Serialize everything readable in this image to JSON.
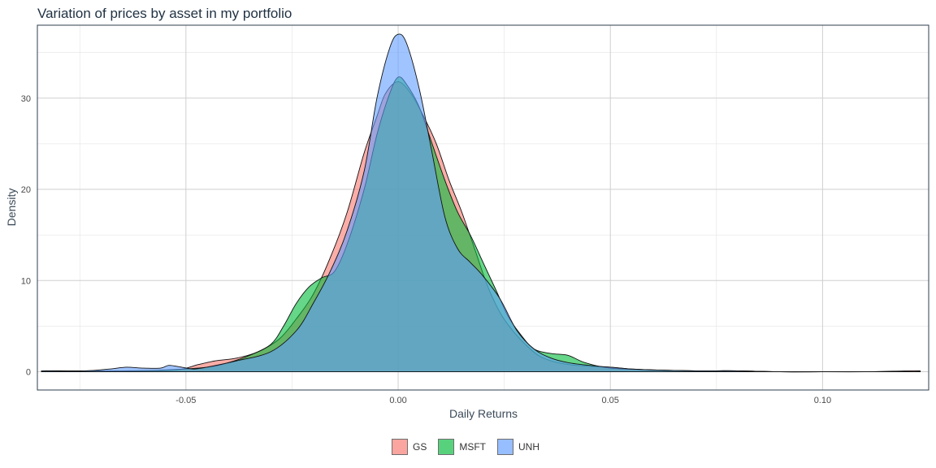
{
  "title": "Variation of prices by asset in my portfolio",
  "legend": [
    {
      "label": "GS",
      "color": "#f8766d"
    },
    {
      "label": "MSFT",
      "color": "#00ba38"
    },
    {
      "label": "UNH",
      "color": "#619cff"
    }
  ],
  "chart_data": {
    "type": "area",
    "title": "Variation of prices by asset in my portfolio",
    "xlabel": "Daily Returns",
    "ylabel": "Density",
    "xlim": [
      -0.085,
      0.125
    ],
    "ylim": [
      -2,
      38
    ],
    "xticks": [
      -0.05,
      0.0,
      0.05,
      0.1
    ],
    "xtick_labels": [
      "-0.05",
      "0.00",
      "0.05",
      "0.10"
    ],
    "yticks": [
      0,
      10,
      20,
      30
    ],
    "ytick_labels": [
      "0",
      "10",
      "20",
      "30"
    ],
    "grid": true,
    "legend_position": "bottom",
    "series": [
      {
        "name": "GS",
        "color": "#f8766d",
        "x": [
          -0.084,
          -0.078,
          -0.07,
          -0.06,
          -0.052,
          -0.047,
          -0.043,
          -0.038,
          -0.033,
          -0.028,
          -0.024,
          -0.02,
          -0.016,
          -0.012,
          -0.008,
          -0.005,
          -0.003,
          0,
          0.003,
          0.006,
          0.009,
          0.012,
          0.015,
          0.018,
          0.021,
          0.024,
          0.027,
          0.03,
          0.033,
          0.036,
          0.04,
          0.045,
          0.05,
          0.055,
          0.06,
          0.07,
          0.08,
          0.09,
          0.1,
          0.11,
          0.12,
          0.123
        ],
        "y": [
          0.1,
          0.1,
          0,
          0.1,
          0.2,
          0.8,
          1.2,
          1.5,
          2.2,
          3.6,
          5.8,
          8.5,
          12.5,
          17.5,
          24,
          28,
          30.5,
          31.8,
          30.5,
          28,
          25,
          21,
          17.5,
          13.5,
          9.5,
          6.5,
          4.5,
          3,
          1.8,
          1.2,
          0.8,
          0.6,
          0.5,
          0.3,
          0.2,
          0.1,
          0.1,
          0,
          0,
          0,
          0.1,
          0.1
        ]
      },
      {
        "name": "MSFT",
        "color": "#00ba38",
        "x": [
          -0.084,
          -0.075,
          -0.065,
          -0.055,
          -0.045,
          -0.04,
          -0.035,
          -0.03,
          -0.027,
          -0.024,
          -0.021,
          -0.018,
          -0.015,
          -0.012,
          -0.008,
          -0.005,
          -0.002,
          0,
          0.002,
          0.005,
          0.008,
          0.011,
          0.014,
          0.017,
          0.02,
          0.023,
          0.026,
          0.029,
          0.032,
          0.036,
          0.04,
          0.044,
          0.05,
          0.06,
          0.07,
          0.08,
          0.09,
          0.1,
          0.12,
          0.123
        ],
        "y": [
          0.1,
          0.1,
          0.1,
          0.2,
          0.5,
          1,
          1.8,
          3,
          5,
          7.5,
          9.3,
          10.3,
          11,
          14,
          20,
          26,
          30.5,
          32.3,
          31.5,
          29,
          25,
          21,
          17.5,
          15,
          12,
          9,
          6,
          4,
          2.5,
          2,
          1.8,
          1,
          0.4,
          0.2,
          0.1,
          0.1,
          0,
          0,
          0,
          0
        ]
      },
      {
        "name": "UNH",
        "color": "#619cff",
        "x": [
          -0.084,
          -0.074,
          -0.068,
          -0.064,
          -0.06,
          -0.056,
          -0.054,
          -0.051,
          -0.048,
          -0.044,
          -0.038,
          -0.03,
          -0.024,
          -0.02,
          -0.016,
          -0.012,
          -0.008,
          -0.005,
          -0.002,
          0,
          0.002,
          0.005,
          0.008,
          0.011,
          0.014,
          0.017,
          0.02,
          0.024,
          0.028,
          0.032,
          0.036,
          0.04,
          0.045,
          0.05,
          0.055,
          0.06,
          0.07,
          0.08,
          0.09,
          0.1,
          0.12,
          0.123
        ],
        "y": [
          0.1,
          0.1,
          0.3,
          0.5,
          0.4,
          0.4,
          0.7,
          0.5,
          0.3,
          0.6,
          1.2,
          2.2,
          4.5,
          7.5,
          11,
          15.5,
          22,
          30,
          35.5,
          37,
          36,
          31,
          24,
          17,
          13.5,
          12,
          10.5,
          8,
          4.5,
          2.5,
          1.5,
          1,
          0.7,
          0.5,
          0.3,
          0.2,
          0.1,
          0.1,
          0,
          0,
          0,
          0
        ]
      }
    ],
    "overlap_color": "#66a8c2"
  }
}
